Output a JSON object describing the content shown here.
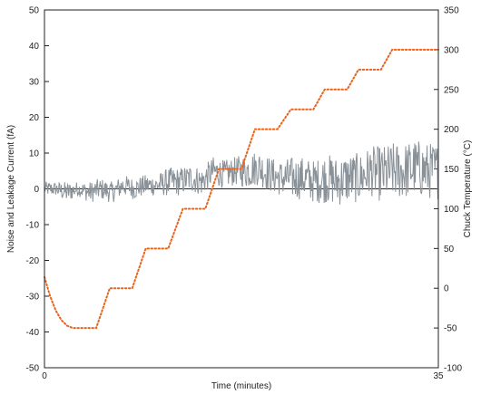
{
  "chart_data": {
    "type": "line",
    "xlabel": "Time (minutes)",
    "ylabel": "Noise and Leakage Current (fA)",
    "y2label": "Chuck Temperature (°C)",
    "xlim": [
      0,
      35
    ],
    "ylim": [
      -50,
      50
    ],
    "y2lim": [
      -100,
      350
    ],
    "x_ticks": [
      0,
      35
    ],
    "y_ticks": [
      -50,
      -40,
      -30,
      -20,
      -10,
      0,
      10,
      20,
      30,
      40,
      50
    ],
    "y2_ticks": [
      -100,
      -50,
      0,
      50,
      100,
      150,
      200,
      250,
      300,
      350
    ],
    "grid": false,
    "legend": "none",
    "zero_line": true,
    "colors": {
      "noise": "#8a9299",
      "temperature": "#e8641e",
      "axis": "#222222"
    },
    "series": [
      {
        "axis": "right",
        "style": "dotted",
        "x": [
          0,
          0.5,
          1,
          1.5,
          2,
          2.5,
          3,
          4.6,
          5.8,
          7.8,
          9,
          11,
          12.3,
          14.3,
          15.5,
          17.5,
          18.7,
          20.7,
          21.9,
          23.9,
          24.9,
          26.9,
          27.9,
          29.9,
          30.9,
          33.1,
          35
        ],
        "y": [
          14,
          -10,
          -28,
          -40,
          -47,
          -50,
          -50,
          -50,
          0,
          0,
          50,
          50,
          100,
          100,
          150,
          150,
          200,
          200,
          225,
          225,
          250,
          250,
          275,
          275,
          300,
          300,
          300
        ]
      },
      {
        "axis": "left",
        "style": "solid",
        "x": [
          0,
          1,
          2,
          3,
          4,
          5,
          6,
          7,
          8,
          9,
          10,
          11,
          12,
          13,
          14,
          15,
          16,
          17,
          18,
          19,
          20,
          21,
          22,
          23,
          24,
          25,
          26,
          27,
          28,
          29,
          30,
          31,
          32,
          33,
          34,
          35
        ],
        "y": [
          0,
          0,
          -1,
          0,
          -1,
          0,
          -1,
          1,
          0,
          1,
          1,
          2,
          2,
          3,
          2,
          5,
          4,
          5,
          5,
          6,
          4,
          3,
          3,
          3,
          2,
          3,
          2,
          3,
          3,
          5,
          4,
          5,
          5,
          6,
          5,
          5
        ],
        "amplitude": [
          2,
          2,
          3,
          2,
          3,
          3,
          3,
          3,
          3,
          3,
          3,
          4,
          4,
          4,
          4,
          4,
          4,
          4,
          5,
          5,
          5,
          5,
          6,
          6,
          6,
          7,
          7,
          7,
          7,
          7,
          8,
          8,
          8,
          8,
          8,
          8
        ]
      }
    ]
  }
}
